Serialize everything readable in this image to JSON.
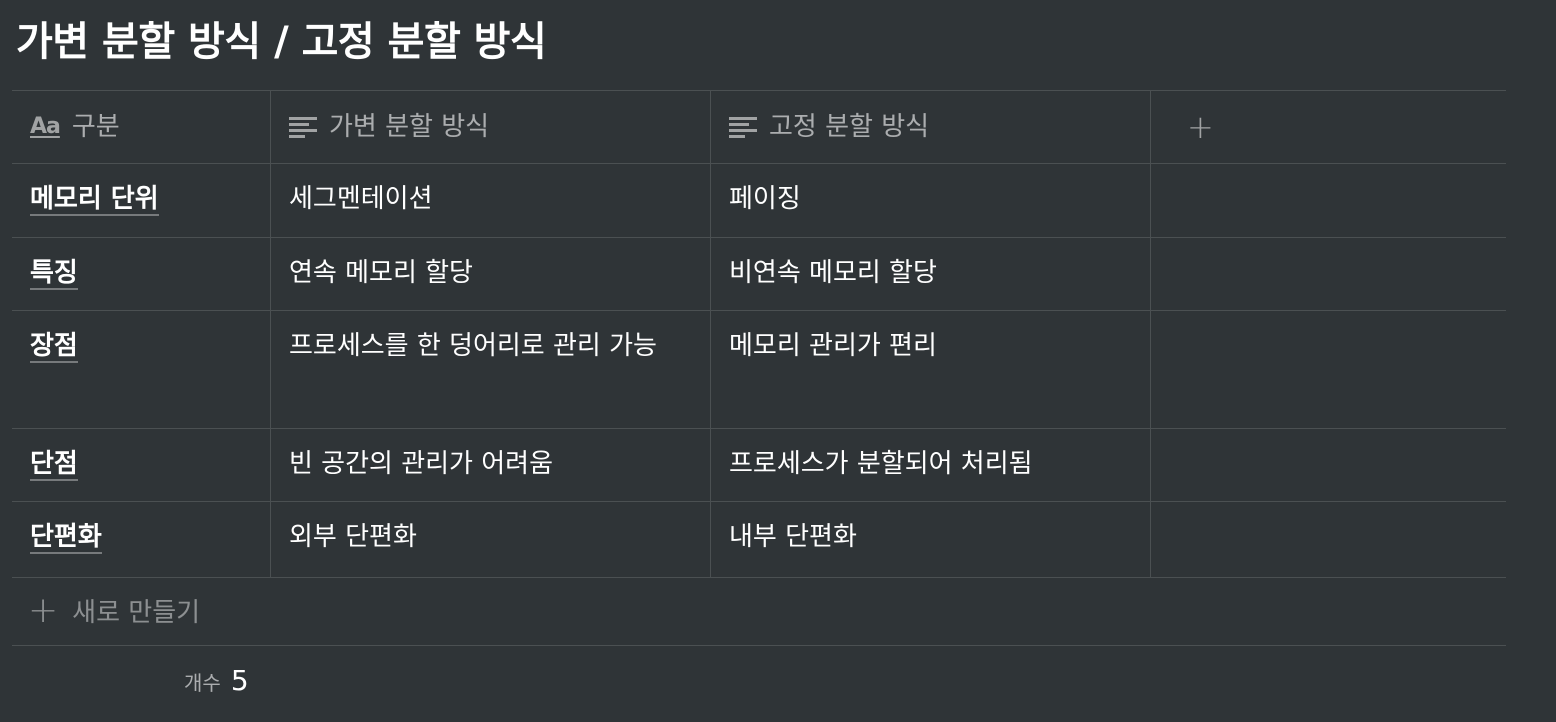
{
  "page": {
    "title": "가변 분할 방식 / 고정 분할 방식"
  },
  "table": {
    "columns": [
      {
        "label": "구분",
        "icon": "text-aa-icon"
      },
      {
        "label": "가변 분할 방식",
        "icon": "text-lines-icon"
      },
      {
        "label": "고정 분할 방식",
        "icon": "text-lines-icon"
      }
    ],
    "add_column_icon": "plus-icon",
    "rows": [
      {
        "name": "메모리 단위",
        "variable": "세그멘테이션",
        "fixed": "페이징"
      },
      {
        "name": "특징",
        "variable": "연속 메모리 할당",
        "fixed": "비연속 메모리 할당"
      },
      {
        "name": "장점",
        "variable": "프로세스를 한 덩어리로 관리 가능",
        "fixed": "메모리 관리가 편리"
      },
      {
        "name": "단점",
        "variable": "빈 공간의 관리가 어려움",
        "fixed": "프로세스가 분할되어 처리됨"
      },
      {
        "name": "단편화",
        "variable": "외부 단편화",
        "fixed": "내부 단편화"
      }
    ],
    "new_row_label": "새로 만들기",
    "count_label": "개수",
    "count_value": "5"
  },
  "colors": {
    "background": "#2f3437",
    "border": "#4b5052",
    "text": "#ffffff"
  }
}
